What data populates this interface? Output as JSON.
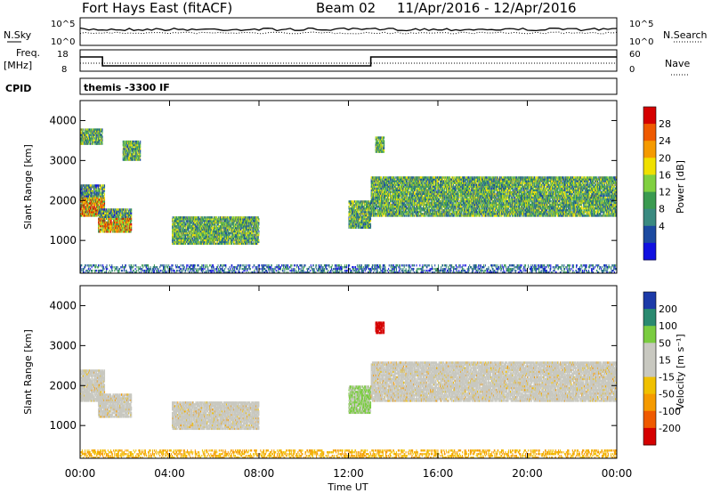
{
  "header": {
    "title": "Fort Hays East (fitACF)",
    "beam": "Beam 02",
    "date_range": "11/Apr/2016 - 12/Apr/2016"
  },
  "status_panel": {
    "nsky_label": "N.Sky",
    "nsearch_label": "N.Search",
    "freq_label_1": "Freq.",
    "freq_label_2": "[MHz]",
    "nave_label": "Nave",
    "cpid_label": "CPID",
    "noise_ticks_left": [
      "10^5",
      "10^0"
    ],
    "noise_ticks_right": [
      "10^5",
      "10^0"
    ],
    "freq_ticks": [
      "18",
      "8"
    ],
    "nave_ticks": [
      "60",
      "0"
    ],
    "cpid_text": "themis -3300 IF"
  },
  "chart_data": [
    {
      "type": "heatmap",
      "panel": "power",
      "ylabel": "Slant Range [km]",
      "xlabel": "Time UT",
      "x_ticks": [
        "00:00",
        "04:00",
        "08:00",
        "12:00",
        "16:00",
        "20:00",
        "00:00"
      ],
      "x_range_hours": [
        0,
        24
      ],
      "y_ticks": [
        1000,
        2000,
        3000,
        4000
      ],
      "ylim": [
        180,
        4500
      ],
      "colorbar_label": "Power [dB]",
      "colorbar_ticks": [
        28,
        24,
        20,
        16,
        12,
        8,
        4
      ],
      "colors": [
        "#d50000",
        "#ef5a00",
        "#f59a00",
        "#f0e000",
        "#80d040",
        "#3a9a50",
        "#3a8a80",
        "#1c4aa0",
        "#1010e0"
      ],
      "regions": [
        {
          "t": [
            0.0,
            1.1
          ],
          "r": [
            1600,
            2400
          ],
          "level": "high"
        },
        {
          "t": [
            0.8,
            2.3
          ],
          "r": [
            1200,
            1800
          ],
          "level": "high"
        },
        {
          "t": [
            0.0,
            1.0
          ],
          "r": [
            3400,
            3800
          ],
          "level": "mid"
        },
        {
          "t": [
            1.9,
            2.7
          ],
          "r": [
            3000,
            3500
          ],
          "level": "mid"
        },
        {
          "t": [
            4.1,
            8.0
          ],
          "r": [
            900,
            1600
          ],
          "level": "mid"
        },
        {
          "t": [
            12.0,
            13.0
          ],
          "r": [
            1300,
            2000
          ],
          "level": "mid"
        },
        {
          "t": [
            13.0,
            24.0
          ],
          "r": [
            1600,
            2600
          ],
          "level": "mid"
        },
        {
          "t": [
            13.2,
            13.6
          ],
          "r": [
            3200,
            3600
          ],
          "level": "mid"
        },
        {
          "t": [
            0.0,
            24.0
          ],
          "r": [
            180,
            400
          ],
          "level": "low"
        }
      ]
    },
    {
      "type": "heatmap",
      "panel": "velocity",
      "ylabel": "Slant Range [km]",
      "xlabel": "Time UT",
      "x_ticks": [
        "00:00",
        "04:00",
        "08:00",
        "12:00",
        "16:00",
        "20:00",
        "00:00"
      ],
      "x_range_hours": [
        0,
        24
      ],
      "y_ticks": [
        1000,
        2000,
        3000,
        4000
      ],
      "ylim": [
        180,
        4500
      ],
      "colorbar_label": "Velocity [m s⁻¹]",
      "colorbar_ticks": [
        200,
        100,
        50,
        15,
        -15,
        -50,
        -100,
        -200
      ],
      "colors": [
        "#1c3aa8",
        "#2a8a70",
        "#7acc40",
        "#c8c8c0",
        "#c8c8c0",
        "#f0c000",
        "#f59a00",
        "#ef5a00",
        "#d50000"
      ],
      "regions": [
        {
          "t": [
            0.0,
            1.1
          ],
          "r": [
            1600,
            2400
          ],
          "level": "gray"
        },
        {
          "t": [
            0.8,
            2.3
          ],
          "r": [
            1200,
            1800
          ],
          "level": "gray"
        },
        {
          "t": [
            4.1,
            8.0
          ],
          "r": [
            900,
            1600
          ],
          "level": "gray"
        },
        {
          "t": [
            12.0,
            13.0
          ],
          "r": [
            1300,
            2000
          ],
          "level": "green"
        },
        {
          "t": [
            13.0,
            24.0
          ],
          "r": [
            1600,
            2600
          ],
          "level": "gray"
        },
        {
          "t": [
            13.2,
            13.6
          ],
          "r": [
            3300,
            3600
          ],
          "level": "red"
        },
        {
          "t": [
            0.0,
            24.0
          ],
          "r": [
            180,
            400
          ],
          "level": "orange"
        }
      ]
    }
  ]
}
